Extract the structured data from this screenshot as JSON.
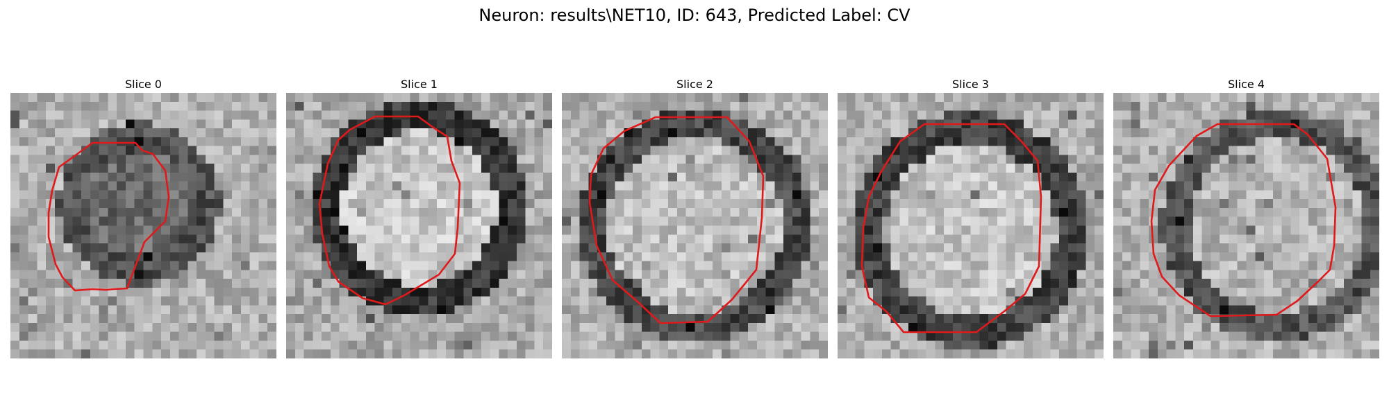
{
  "figure": {
    "title": "Neuron: results\\NET10, ID: 643, Predicted Label: CV",
    "contour_color": "#e0191b"
  },
  "slices": [
    {
      "title": "Slice 0"
    },
    {
      "title": "Slice 1"
    },
    {
      "title": "Slice 2"
    },
    {
      "title": "Slice 3"
    },
    {
      "title": "Slice 4"
    }
  ]
}
